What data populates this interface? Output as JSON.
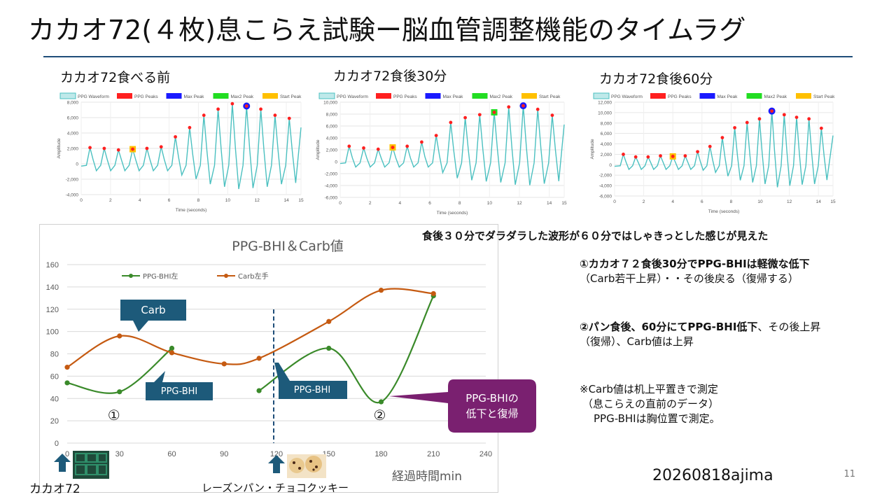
{
  "slide": {
    "title": "カカオ72(４枚)息こらえ試験ー脳血管調整機能のタイムラグ",
    "page_number": "11",
    "author_date": "20260818ajima"
  },
  "ppg_panels": [
    {
      "label": "カカオ72食べる前",
      "ymin": -4000,
      "ymax": 8000,
      "yticks": [
        "8,000",
        "6,000",
        "4,000",
        "2,000",
        "0",
        "-2,000",
        "-4,000"
      ],
      "peaks": [
        2100,
        2000,
        1800,
        1900,
        2000,
        2200,
        3500,
        4700,
        6300,
        7100,
        7800,
        7500,
        7100,
        6300,
        5900
      ],
      "markers": {
        "start_peak_index": 3,
        "max_peak_index": 11
      }
    },
    {
      "label": "カカオ72食後30分",
      "ymin": -6000,
      "ymax": 10000,
      "yticks": [
        "10,000",
        "8,000",
        "6,000",
        "4,000",
        "2,000",
        "0",
        "-2,000",
        "-4,000",
        "-6,000"
      ],
      "peaks": [
        2600,
        2300,
        2100,
        2400,
        2600,
        3300,
        4400,
        6600,
        7400,
        7900,
        8300,
        9200,
        9400,
        8800,
        7800
      ],
      "markers": {
        "start_peak_index": 3,
        "max2_peak_index": 10,
        "max_peak_index": 12
      }
    },
    {
      "label": "カカオ72食後60分",
      "ymin": -6000,
      "ymax": 12000,
      "yticks": [
        "12,000",
        "10,000",
        "8,000",
        "6,000",
        "4,000",
        "2,000",
        "0",
        "-2,000",
        "-4,000",
        "-6,000"
      ],
      "peaks": [
        2000,
        1500,
        1500,
        1700,
        1600,
        1700,
        2500,
        3500,
        5200,
        7100,
        8100,
        8800,
        10300,
        9600,
        9100,
        8800,
        7000
      ],
      "markers": {
        "start_peak_index": 4,
        "max_peak_index": 12
      }
    }
  ],
  "ppg_common": {
    "legend": [
      "PPG Waveform",
      "PPG Peaks",
      "Max Peak",
      "Max2 Peak",
      "Start Peak"
    ],
    "xlabel": "Time (seconds)",
    "ylabel": "Amplitude",
    "xticks": [
      "0",
      "2",
      "4",
      "6",
      "8",
      "10",
      "12",
      "14",
      "15"
    ],
    "colors": {
      "waveform": "#4bc0c0",
      "peak": "#ff2020",
      "max": "#1a1aff",
      "max2": "#22dd22",
      "start": "#ffc000"
    }
  },
  "chart_data": {
    "type": "line",
    "title": "PPG-BHI＆Carb値",
    "xlabel": "経過時間min",
    "ylabel": "",
    "xlim": [
      0,
      240
    ],
    "ylim": [
      0,
      160
    ],
    "xticks": [
      0,
      30,
      60,
      90,
      120,
      150,
      180,
      210,
      240
    ],
    "yticks": [
      0,
      20,
      40,
      60,
      80,
      100,
      120,
      140,
      160
    ],
    "grid": true,
    "legend_position": "top",
    "series": [
      {
        "name": "PPG-BHI左",
        "color": "#3a8a2a",
        "segments": [
          [
            [
              0,
              54
            ],
            [
              30,
              46
            ],
            [
              60,
              85
            ]
          ],
          [
            [
              110,
              47
            ],
            [
              150,
              85
            ],
            [
              180,
              37
            ],
            [
              210,
              132
            ]
          ]
        ]
      },
      {
        "name": "Carb左手",
        "color": "#c55a11",
        "segments": [
          [
            [
              0,
              68
            ],
            [
              30,
              96
            ],
            [
              60,
              81
            ],
            [
              90,
              71
            ],
            [
              110,
              76
            ],
            [
              150,
              109
            ],
            [
              180,
              137
            ],
            [
              210,
              134
            ]
          ]
        ]
      }
    ],
    "vline_x": 120,
    "annotations": [
      "①",
      "②"
    ]
  },
  "callouts": {
    "carb": "Carb",
    "ppg_bhi_1": "PPG-BHI",
    "ppg_bhi_2": "PPG-BHI",
    "purple": "PPG-BHIの\n低下と復帰"
  },
  "bottom_labels": {
    "cacao": "カカオ72",
    "bread": "レーズンパン・チョコクッキー"
  },
  "notes": {
    "headline": "食後３０分でダラダラした波形が６０分ではしゃきっとした感じが見えた",
    "n1_bold": "①カカオ７２食後30分でPPG-BHIは軽微な低下",
    "n1_rest": "（Carb若干上昇）・・その後戻る（復帰する）",
    "n2_bold": "②パン食後、60分にてPPG-BHI低下",
    "n2_rest": "、その後上昇（復帰）、Carb値は上昇",
    "n3_line1": "※Carb値は机上平置きで測定",
    "n3_line2": "（息こらえの直前のデータ）",
    "n3_line3": "PPG-BHIは胸位置で測定。"
  },
  "colors": {
    "title_rule": "#1f4e79",
    "callout_blue": "#1d5a7a",
    "callout_purple": "#7a2070",
    "vline": "#1f4e79"
  }
}
